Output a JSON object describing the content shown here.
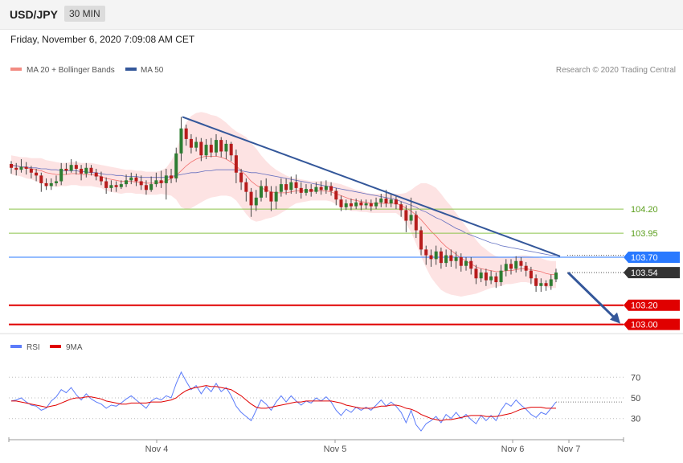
{
  "header": {
    "symbol": "USD/JPY",
    "timeframe": "30 MIN",
    "datetime": "Friday, November 6, 2020 7:09:08 AM CET"
  },
  "legend": {
    "ma20_label": "MA 20 + Bollinger Bands",
    "ma50_label": "MA 50",
    "rsi_label": "RSI",
    "ma9_label": "9MA",
    "copyright": "Research © 2020 Trading Central"
  },
  "colors": {
    "bull": "#2e7d32",
    "bear": "#b71c1c",
    "ma20": "#ef5350",
    "band_fill": "#fde3e3",
    "ma50": "#3f51b5",
    "trendline": "#34579a",
    "level_resistance": "#8bc34a",
    "level_pivot": "#2979ff",
    "level_support": "#e00000",
    "last_price": "#333333",
    "rsi": "#5c7cfa",
    "rsi_ma": "#e00000"
  },
  "chart_data": {
    "type": "candlestick",
    "price_scale": {
      "min": 102.93,
      "max": 105.54
    },
    "x_labels": [
      "Nov 4",
      "Nov 5",
      "Nov 6",
      "Nov 7"
    ],
    "levels": [
      {
        "value": 104.2,
        "label": "104.20",
        "kind": "resistance"
      },
      {
        "value": 103.95,
        "label": "103.95",
        "kind": "resistance"
      },
      {
        "value": 103.7,
        "label": "103.70",
        "kind": "pivot"
      },
      {
        "value": 103.54,
        "label": "103.54",
        "kind": "last"
      },
      {
        "value": 103.2,
        "label": "103.20",
        "kind": "support"
      },
      {
        "value": 103.0,
        "label": "103.00",
        "kind": "support"
      }
    ],
    "trendline": {
      "start": 105.16,
      "end": 103.71
    },
    "forecast_arrow": {
      "from": 103.54,
      "to": 103.0
    },
    "candles": [
      [
        104.67,
        104.63,
        104.7,
        104.57
      ],
      [
        104.63,
        104.61,
        104.68,
        104.55
      ],
      [
        104.61,
        104.64,
        104.72,
        104.58
      ],
      [
        104.64,
        104.62,
        104.69,
        104.56
      ],
      [
        104.62,
        104.58,
        104.65,
        104.52
      ],
      [
        104.58,
        104.55,
        104.62,
        104.49
      ],
      [
        104.55,
        104.47,
        104.58,
        104.38
      ],
      [
        104.47,
        104.44,
        104.52,
        104.4
      ],
      [
        104.44,
        104.47,
        104.52,
        104.4
      ],
      [
        104.47,
        104.49,
        104.55,
        104.44
      ],
      [
        104.49,
        104.62,
        104.68,
        104.45
      ],
      [
        104.62,
        104.6,
        104.68,
        104.56
      ],
      [
        104.6,
        104.66,
        104.72,
        104.58
      ],
      [
        104.66,
        104.62,
        104.7,
        104.56
      ],
      [
        104.62,
        104.57,
        104.66,
        104.5
      ],
      [
        104.57,
        104.63,
        104.68,
        104.53
      ],
      [
        104.63,
        104.58,
        104.66,
        104.55
      ],
      [
        104.58,
        104.54,
        104.62,
        104.5
      ],
      [
        104.54,
        104.49,
        104.59,
        104.45
      ],
      [
        104.49,
        104.42,
        104.53,
        104.36
      ],
      [
        104.42,
        104.45,
        104.5,
        104.38
      ],
      [
        104.45,
        104.43,
        104.49,
        104.38
      ],
      [
        104.43,
        104.46,
        104.5,
        104.41
      ],
      [
        104.46,
        104.5,
        104.56,
        104.43
      ],
      [
        104.5,
        104.53,
        104.58,
        104.46
      ],
      [
        104.53,
        104.49,
        104.57,
        104.44
      ],
      [
        104.49,
        104.45,
        104.55,
        104.4
      ],
      [
        104.45,
        104.4,
        104.5,
        104.35
      ],
      [
        104.4,
        104.46,
        104.54,
        104.38
      ],
      [
        104.46,
        104.5,
        104.58,
        104.43
      ],
      [
        104.5,
        104.47,
        104.6,
        104.42
      ],
      [
        104.47,
        104.55,
        104.62,
        104.3
      ],
      [
        104.55,
        104.52,
        104.62,
        104.47
      ],
      [
        104.52,
        104.78,
        104.84,
        104.48
      ],
      [
        104.78,
        105.04,
        105.16,
        104.7
      ],
      [
        105.04,
        104.93,
        105.08,
        104.86
      ],
      [
        104.93,
        104.84,
        104.98,
        104.78
      ],
      [
        104.84,
        104.9,
        104.95,
        104.8
      ],
      [
        104.9,
        104.76,
        104.94,
        104.7
      ],
      [
        104.76,
        104.87,
        104.93,
        104.72
      ],
      [
        104.87,
        104.79,
        104.94,
        104.74
      ],
      [
        104.79,
        104.92,
        104.98,
        104.75
      ],
      [
        104.92,
        104.8,
        104.95,
        104.74
      ],
      [
        104.8,
        104.88,
        104.92,
        104.72
      ],
      [
        104.88,
        104.76,
        104.9,
        104.7
      ],
      [
        104.76,
        104.58,
        104.82,
        104.47
      ],
      [
        104.58,
        104.48,
        104.62,
        104.4
      ],
      [
        104.48,
        104.38,
        104.52,
        104.28
      ],
      [
        104.38,
        104.24,
        104.42,
        104.12
      ],
      [
        104.24,
        104.32,
        104.4,
        104.18
      ],
      [
        104.32,
        104.44,
        104.5,
        104.28
      ],
      [
        104.44,
        104.38,
        104.52,
        104.32
      ],
      [
        104.38,
        104.28,
        104.44,
        104.18
      ],
      [
        104.28,
        104.38,
        104.44,
        104.2
      ],
      [
        104.38,
        104.46,
        104.52,
        104.33
      ],
      [
        104.46,
        104.4,
        104.52,
        104.35
      ],
      [
        104.4,
        104.48,
        104.54,
        104.36
      ],
      [
        104.48,
        104.42,
        104.56,
        104.36
      ],
      [
        104.42,
        104.37,
        104.48,
        104.31
      ],
      [
        104.37,
        104.41,
        104.46,
        104.34
      ],
      [
        104.41,
        104.38,
        104.46,
        104.33
      ],
      [
        104.38,
        104.43,
        104.48,
        104.36
      ],
      [
        104.43,
        104.4,
        104.49,
        104.35
      ],
      [
        104.4,
        104.44,
        104.5,
        104.36
      ],
      [
        104.44,
        104.39,
        104.48,
        104.34
      ],
      [
        104.39,
        104.3,
        104.42,
        104.24
      ],
      [
        104.3,
        104.22,
        104.34,
        104.18
      ],
      [
        104.22,
        104.26,
        104.3,
        104.19
      ],
      [
        104.26,
        104.23,
        104.31,
        104.19
      ],
      [
        104.23,
        104.27,
        104.31,
        104.2
      ],
      [
        104.27,
        104.24,
        104.3,
        104.19
      ],
      [
        104.24,
        104.26,
        104.3,
        104.2
      ],
      [
        104.26,
        104.23,
        104.3,
        104.18
      ],
      [
        104.23,
        104.27,
        104.32,
        104.2
      ],
      [
        104.27,
        104.31,
        104.36,
        104.22
      ],
      [
        104.31,
        104.26,
        104.4,
        104.22
      ],
      [
        104.26,
        104.3,
        104.35,
        104.22
      ],
      [
        104.3,
        104.25,
        104.34,
        104.2
      ],
      [
        104.25,
        104.19,
        104.28,
        104.12
      ],
      [
        104.19,
        104.08,
        104.24,
        103.96
      ],
      [
        104.08,
        104.14,
        104.32,
        104.04
      ],
      [
        104.14,
        103.98,
        104.18,
        103.9
      ],
      [
        103.98,
        103.78,
        104.02,
        103.72
      ],
      [
        103.78,
        103.72,
        103.82,
        103.62
      ],
      [
        103.72,
        103.68,
        103.78,
        103.6
      ],
      [
        103.68,
        103.76,
        103.82,
        103.62
      ],
      [
        103.76,
        103.64,
        103.8,
        103.58
      ],
      [
        103.64,
        103.72,
        103.78,
        103.6
      ],
      [
        103.72,
        103.66,
        103.78,
        103.6
      ],
      [
        103.66,
        103.7,
        103.76,
        103.58
      ],
      [
        103.7,
        103.61,
        103.74,
        103.55
      ],
      [
        103.61,
        103.66,
        103.7,
        103.56
      ],
      [
        103.66,
        103.58,
        103.7,
        103.52
      ],
      [
        103.58,
        103.48,
        103.62,
        103.42
      ],
      [
        103.48,
        103.54,
        103.58,
        103.44
      ],
      [
        103.54,
        103.46,
        103.58,
        103.4
      ],
      [
        103.46,
        103.5,
        103.56,
        103.42
      ],
      [
        103.5,
        103.44,
        103.54,
        103.38
      ],
      [
        103.44,
        103.56,
        103.62,
        103.4
      ],
      [
        103.56,
        103.63,
        103.68,
        103.5
      ],
      [
        103.63,
        103.58,
        103.68,
        103.52
      ],
      [
        103.58,
        103.66,
        103.71,
        103.54
      ],
      [
        103.66,
        103.61,
        103.7,
        103.55
      ],
      [
        103.61,
        103.56,
        103.65,
        103.5
      ],
      [
        103.56,
        103.48,
        103.6,
        103.42
      ],
      [
        103.48,
        103.4,
        103.52,
        103.34
      ],
      [
        103.4,
        103.43,
        103.48,
        103.34
      ],
      [
        103.43,
        103.4,
        103.46,
        103.35
      ],
      [
        103.4,
        103.47,
        103.52,
        103.36
      ],
      [
        103.47,
        103.54,
        103.58,
        103.44
      ]
    ],
    "ma20": [
      104.66,
      104.65,
      104.64,
      104.63,
      104.62,
      104.61,
      104.6,
      104.58,
      104.57,
      104.56,
      104.56,
      104.56,
      104.57,
      104.57,
      104.56,
      104.56,
      104.56,
      104.55,
      104.54,
      104.52,
      104.51,
      104.5,
      104.49,
      104.49,
      104.49,
      104.48,
      104.48,
      104.47,
      104.47,
      104.47,
      104.48,
      104.49,
      104.52,
      104.55,
      104.6,
      104.65,
      104.69,
      104.72,
      104.74,
      104.75,
      104.75,
      104.75,
      104.74,
      104.72,
      104.69,
      104.65,
      104.6,
      104.55,
      104.49,
      104.45,
      104.42,
      104.4,
      104.38,
      104.37,
      104.37,
      104.37,
      104.38,
      104.39,
      104.39,
      104.39,
      104.39,
      104.39,
      104.39,
      104.39,
      104.38,
      104.36,
      104.34,
      104.32,
      104.3,
      104.29,
      104.28,
      104.27,
      104.26,
      104.26,
      104.26,
      104.26,
      104.26,
      104.26,
      104.24,
      104.21,
      104.18,
      104.14,
      104.09,
      104.03,
      103.97,
      103.92,
      103.86,
      103.81,
      103.77,
      103.73,
      103.69,
      103.66,
      103.63,
      103.6,
      103.58,
      103.57,
      103.56,
      103.55,
      103.55,
      103.56,
      103.56,
      103.57,
      103.58,
      103.58,
      103.57,
      103.56,
      103.55,
      103.53,
      103.52,
      103.52
    ],
    "band_width": [
      0.1,
      0.1,
      0.1,
      0.11,
      0.11,
      0.12,
      0.13,
      0.13,
      0.13,
      0.13,
      0.12,
      0.12,
      0.12,
      0.12,
      0.12,
      0.12,
      0.12,
      0.12,
      0.12,
      0.13,
      0.13,
      0.13,
      0.13,
      0.12,
      0.12,
      0.12,
      0.12,
      0.12,
      0.12,
      0.12,
      0.12,
      0.14,
      0.18,
      0.25,
      0.38,
      0.45,
      0.48,
      0.48,
      0.47,
      0.45,
      0.43,
      0.42,
      0.4,
      0.38,
      0.36,
      0.36,
      0.38,
      0.4,
      0.4,
      0.38,
      0.34,
      0.3,
      0.27,
      0.24,
      0.21,
      0.18,
      0.15,
      0.13,
      0.12,
      0.11,
      0.1,
      0.1,
      0.1,
      0.1,
      0.1,
      0.11,
      0.12,
      0.12,
      0.12,
      0.11,
      0.11,
      0.1,
      0.1,
      0.1,
      0.1,
      0.1,
      0.1,
      0.1,
      0.12,
      0.16,
      0.22,
      0.3,
      0.38,
      0.44,
      0.48,
      0.5,
      0.5,
      0.48,
      0.46,
      0.43,
      0.4,
      0.36,
      0.32,
      0.28,
      0.24,
      0.21,
      0.18,
      0.16,
      0.15,
      0.14,
      0.14,
      0.14,
      0.14,
      0.14,
      0.14,
      0.14,
      0.14,
      0.14,
      0.14,
      0.14
    ],
    "ma50": [
      104.65,
      104.65,
      104.64,
      104.64,
      104.63,
      104.63,
      104.62,
      104.62,
      104.61,
      104.61,
      104.6,
      104.6,
      104.6,
      104.6,
      104.59,
      104.59,
      104.58,
      104.58,
      104.57,
      104.56,
      104.56,
      104.55,
      104.55,
      104.54,
      104.54,
      104.54,
      104.53,
      104.53,
      104.53,
      104.53,
      104.53,
      104.53,
      104.54,
      104.55,
      104.56,
      104.57,
      104.58,
      104.58,
      104.59,
      104.6,
      104.6,
      104.61,
      104.61,
      104.61,
      104.61,
      104.61,
      104.6,
      104.59,
      104.58,
      104.58,
      104.57,
      104.56,
      104.55,
      104.54,
      104.53,
      104.52,
      104.51,
      104.5,
      104.49,
      104.48,
      104.47,
      104.46,
      104.45,
      104.44,
      104.43,
      104.42,
      104.41,
      104.4,
      104.39,
      104.38,
      104.37,
      104.36,
      104.35,
      104.34,
      104.33,
      104.32,
      104.31,
      104.3,
      104.28,
      104.26,
      104.24,
      104.22,
      104.19,
      104.17,
      104.14,
      104.11,
      104.09,
      104.06,
      104.03,
      104.0,
      103.98,
      103.95,
      103.93,
      103.91,
      103.89,
      103.87,
      103.85,
      103.84,
      103.82,
      103.81,
      103.8,
      103.79,
      103.78,
      103.77,
      103.76,
      103.75,
      103.74,
      103.73,
      103.72,
      103.72
    ],
    "rsi": {
      "levels": [
        30,
        50,
        70
      ],
      "scale": [
        15,
        85
      ],
      "rsi": [
        47,
        48,
        50,
        46,
        43,
        42,
        38,
        40,
        47,
        51,
        58,
        55,
        60,
        53,
        48,
        54,
        49,
        46,
        44,
        40,
        43,
        42,
        45,
        49,
        52,
        48,
        44,
        40,
        47,
        50,
        48,
        52,
        50,
        64,
        75,
        66,
        58,
        62,
        54,
        61,
        56,
        64,
        56,
        60,
        52,
        42,
        36,
        32,
        28,
        38,
        48,
        44,
        38,
        46,
        52,
        46,
        52,
        47,
        43,
        47,
        45,
        50,
        47,
        51,
        46,
        38,
        33,
        39,
        36,
        41,
        38,
        41,
        38,
        43,
        48,
        42,
        46,
        42,
        36,
        26,
        38,
        24,
        18,
        25,
        28,
        32,
        26,
        34,
        30,
        36,
        30,
        34,
        29,
        25,
        33,
        28,
        33,
        28,
        38,
        45,
        42,
        48,
        43,
        39,
        34,
        31,
        36,
        34,
        40,
        46
      ],
      "ma9": [
        47,
        47,
        46,
        45,
        44,
        43,
        42,
        41,
        42,
        43,
        45,
        47,
        49,
        50,
        50,
        51,
        51,
        50,
        49,
        47,
        46,
        45,
        44,
        44,
        45,
        45,
        45,
        45,
        46,
        46,
        46,
        47,
        48,
        50,
        54,
        57,
        59,
        60,
        61,
        62,
        61,
        61,
        60,
        59,
        58,
        55,
        52,
        48,
        44,
        41,
        40,
        40,
        41,
        42,
        43,
        44,
        45,
        46,
        46,
        47,
        47,
        47,
        47,
        47,
        47,
        46,
        45,
        43,
        42,
        41,
        40,
        40,
        40,
        41,
        42,
        42,
        43,
        43,
        42,
        40,
        39,
        37,
        34,
        32,
        30,
        29,
        28,
        29,
        29,
        30,
        31,
        32,
        33,
        33,
        33,
        32,
        32,
        32,
        33,
        34,
        35,
        37,
        39,
        40,
        41,
        41,
        41,
        40,
        40,
        40
      ]
    }
  }
}
